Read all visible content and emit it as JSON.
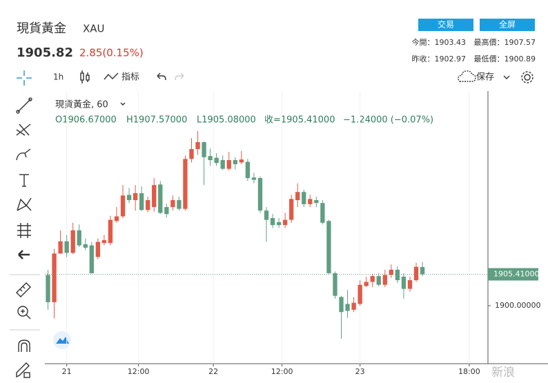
{
  "header": {
    "title": "現貨黃金",
    "symbol": "XAU",
    "price": "1905.82",
    "change": "2.85(0.15%)",
    "buttons": [
      "交易",
      "全屏"
    ],
    "stats": [
      "今開：1903.43",
      "最高價：1907.57",
      "昨收：1902.97",
      "最低價：1900.89"
    ]
  },
  "toolbar": {
    "interval": "1h",
    "indicators": "指标",
    "save": "保存"
  },
  "watermark": "新浪",
  "chart_data": {
    "type": "candlestick",
    "legend_title": "現貨黃金, 60",
    "legend_values": [
      "O1906.67000",
      "H1907.57000",
      "L1905.08000",
      "收=1905.41000",
      "−1.24000 (−0.07%)"
    ],
    "up_color": "#e05a47",
    "down_color": "#5f9e82",
    "x": [
      0,
      1,
      2,
      3,
      4,
      5,
      6,
      7,
      8,
      9,
      10,
      11,
      12,
      13,
      14,
      15,
      16,
      17,
      18,
      19,
      20,
      21,
      22,
      23,
      24,
      25,
      26,
      27,
      28,
      29,
      30,
      31,
      32,
      33,
      34,
      35,
      36,
      37,
      38,
      39,
      40,
      41,
      42,
      43,
      44,
      45,
      46,
      47,
      48,
      49,
      50,
      51,
      52,
      53,
      54,
      55,
      56,
      57,
      58,
      59,
      60
    ],
    "open": [
      1905.3,
      1900.6,
      1909.0,
      1911.1,
      1909.1,
      1913.0,
      1910.6,
      1910.4,
      1908.4,
      1910.8,
      1910.8,
      1914.6,
      1915.4,
      1919.1,
      1918.2,
      1919.4,
      1916.5,
      1917.0,
      1920.9,
      1917.0,
      1917.0,
      1918.2,
      1916.7,
      1925.3,
      1927.0,
      1928.2,
      1925.8,
      1925.5,
      1925.1,
      1923.6,
      1925.1,
      1924.7,
      1924.8,
      1922.1,
      1922.0,
      1916.4,
      1915.1,
      1914.4,
      1913.9,
      1914.8,
      1918.2,
      1919.6,
      1917.5,
      1918.2,
      1917.7,
      1914.6,
      1905.6,
      1901.5,
      1900.3,
      1899.3,
      1900.3,
      1903.4,
      1904.1,
      1905.1,
      1903.6,
      1905.3,
      1906.2,
      1905.0,
      1902.9,
      1904.4,
      1906.67
    ],
    "high": [
      1906.2,
      1909.8,
      1913.0,
      1912.2,
      1914.3,
      1914.0,
      1911.6,
      1911.0,
      1911.6,
      1912.2,
      1915.5,
      1917.0,
      1920.8,
      1920.3,
      1920.8,
      1920.6,
      1918.8,
      1922.0,
      1921.5,
      1917.6,
      1919.0,
      1918.8,
      1925.9,
      1928.9,
      1930.1,
      1928.3,
      1927.1,
      1926.3,
      1925.9,
      1926.5,
      1925.6,
      1926.7,
      1925.3,
      1922.9,
      1922.3,
      1917.0,
      1915.8,
      1915.1,
      1916.0,
      1919.1,
      1921.1,
      1920.0,
      1919.1,
      1918.8,
      1918.2,
      1914.8,
      1905.9,
      1901.7,
      1902.7,
      1901.5,
      1904.4,
      1905.0,
      1905.5,
      1905.6,
      1906.2,
      1907.1,
      1906.8,
      1905.6,
      1905.0,
      1907.4,
      1907.57
    ],
    "low": [
      1899.3,
      1897.8,
      1908.9,
      1908.4,
      1908.9,
      1910.1,
      1909.6,
      1905.5,
      1908.0,
      1910.4,
      1910.4,
      1914.3,
      1915.1,
      1917.7,
      1916.4,
      1916.3,
      1916.1,
      1916.2,
      1915.8,
      1915.2,
      1916.4,
      1916.4,
      1916.4,
      1924.7,
      1926.0,
      1920.8,
      1924.1,
      1924.1,
      1923.4,
      1923.3,
      1923.5,
      1924.4,
      1921.5,
      1921.1,
      1916.0,
      1911.0,
      1913.4,
      1913.4,
      1913.4,
      1914.3,
      1917.0,
      1917.0,
      1917.0,
      1917.0,
      1914.0,
      1905.5,
      1901.2,
      1894.3,
      1897.9,
      1898.9,
      1900.0,
      1903.2,
      1903.2,
      1903.3,
      1903.2,
      1904.8,
      1903.9,
      1901.2,
      1902.4,
      1904.1,
      1905.08
    ],
    "close": [
      1900.6,
      1909.0,
      1911.1,
      1909.1,
      1913.0,
      1910.4,
      1910.0,
      1905.6,
      1911.0,
      1911.3,
      1914.8,
      1915.4,
      1919.0,
      1918.2,
      1919.4,
      1916.5,
      1918.2,
      1920.8,
      1916.0,
      1915.8,
      1918.2,
      1916.7,
      1925.3,
      1927.0,
      1928.2,
      1925.6,
      1925.1,
      1924.6,
      1923.6,
      1925.1,
      1924.4,
      1925.2,
      1922.0,
      1921.7,
      1916.4,
      1914.8,
      1913.9,
      1913.9,
      1914.8,
      1918.4,
      1919.6,
      1917.5,
      1918.4,
      1917.7,
      1914.3,
      1905.6,
      1901.7,
      1898.9,
      1899.1,
      1900.5,
      1903.6,
      1904.1,
      1905.1,
      1903.6,
      1905.3,
      1906.2,
      1904.4,
      1902.9,
      1904.4,
      1906.7,
      1905.41
    ],
    "xlim": [
      -0.5,
      70.5
    ],
    "xticks": [
      {
        "value": 3,
        "label": "21"
      },
      {
        "value": 14.5,
        "label": "12:00"
      },
      {
        "value": 26.5,
        "label": "22"
      },
      {
        "value": 37.5,
        "label": "12:00"
      },
      {
        "value": 50,
        "label": "23"
      },
      {
        "value": 67.5,
        "label": "18:00"
      }
    ],
    "ylim": [
      1890,
      1937
    ],
    "yticks": [
      {
        "value": 1900,
        "label": "1900.00000"
      }
    ],
    "last_price": {
      "value": 1905.41,
      "label": "1905.41000"
    },
    "grid": true
  }
}
